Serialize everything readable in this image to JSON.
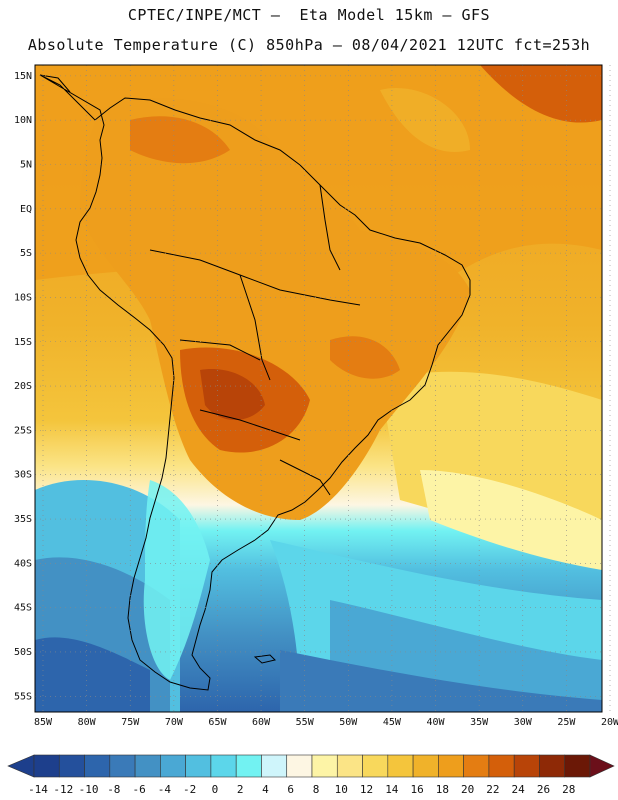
{
  "header": {
    "line1": "CPTEC/INPE/MCT –  Eta Model 15km – GFS",
    "line2": "Absolute Temperature (C) 850hPa – 08/04/2021 12UTC fct=253h"
  },
  "axes": {
    "lat_labels": [
      "15N",
      "10N",
      "5N",
      "EQ",
      "5S",
      "10S",
      "15S",
      "20S",
      "25S",
      "30S",
      "35S",
      "40S",
      "45S",
      "50S",
      "55S"
    ],
    "lon_labels": [
      "85W",
      "80W",
      "75W",
      "70W",
      "65W",
      "60W",
      "55W",
      "50W",
      "45W",
      "40W",
      "35W",
      "30W",
      "25W",
      "20W"
    ]
  },
  "colorbar": {
    "labels": [
      "-14",
      "-12",
      "-10",
      "-8",
      "-6",
      "-4",
      "-2",
      "0",
      "2",
      "4",
      "6",
      "8",
      "10",
      "12",
      "14",
      "16",
      "18",
      "20",
      "22",
      "24",
      "26",
      "28"
    ],
    "colors": [
      "#1d3f8c",
      "#24509c",
      "#2d65ac",
      "#3a7ab8",
      "#4391c4",
      "#4aa8d4",
      "#52bfe0",
      "#5cd6ea",
      "#72f2f2",
      "#cff5fb",
      "#fdf6e3",
      "#fdf4a6",
      "#fbe486",
      "#f8d85c",
      "#f4c53c",
      "#f0b22a",
      "#ee9e1c",
      "#e47d12",
      "#d45f0a",
      "#b84408",
      "#8e2906",
      "#6b1806"
    ]
  },
  "chart_data": {
    "type": "map",
    "title": "Absolute Temperature (C) 850hPa",
    "model": "Eta Model 15km - GFS",
    "run": "08/04/2021 12UTC",
    "forecast_hour": "fct=253h",
    "units": "C",
    "lon_range": [
      -85,
      -20
    ],
    "lat_range": [
      -57,
      16
    ],
    "levels": [
      -14,
      -12,
      -10,
      -8,
      -6,
      -4,
      -2,
      0,
      2,
      4,
      6,
      8,
      10,
      12,
      14,
      16,
      18,
      20,
      22,
      24,
      26,
      28
    ]
  }
}
